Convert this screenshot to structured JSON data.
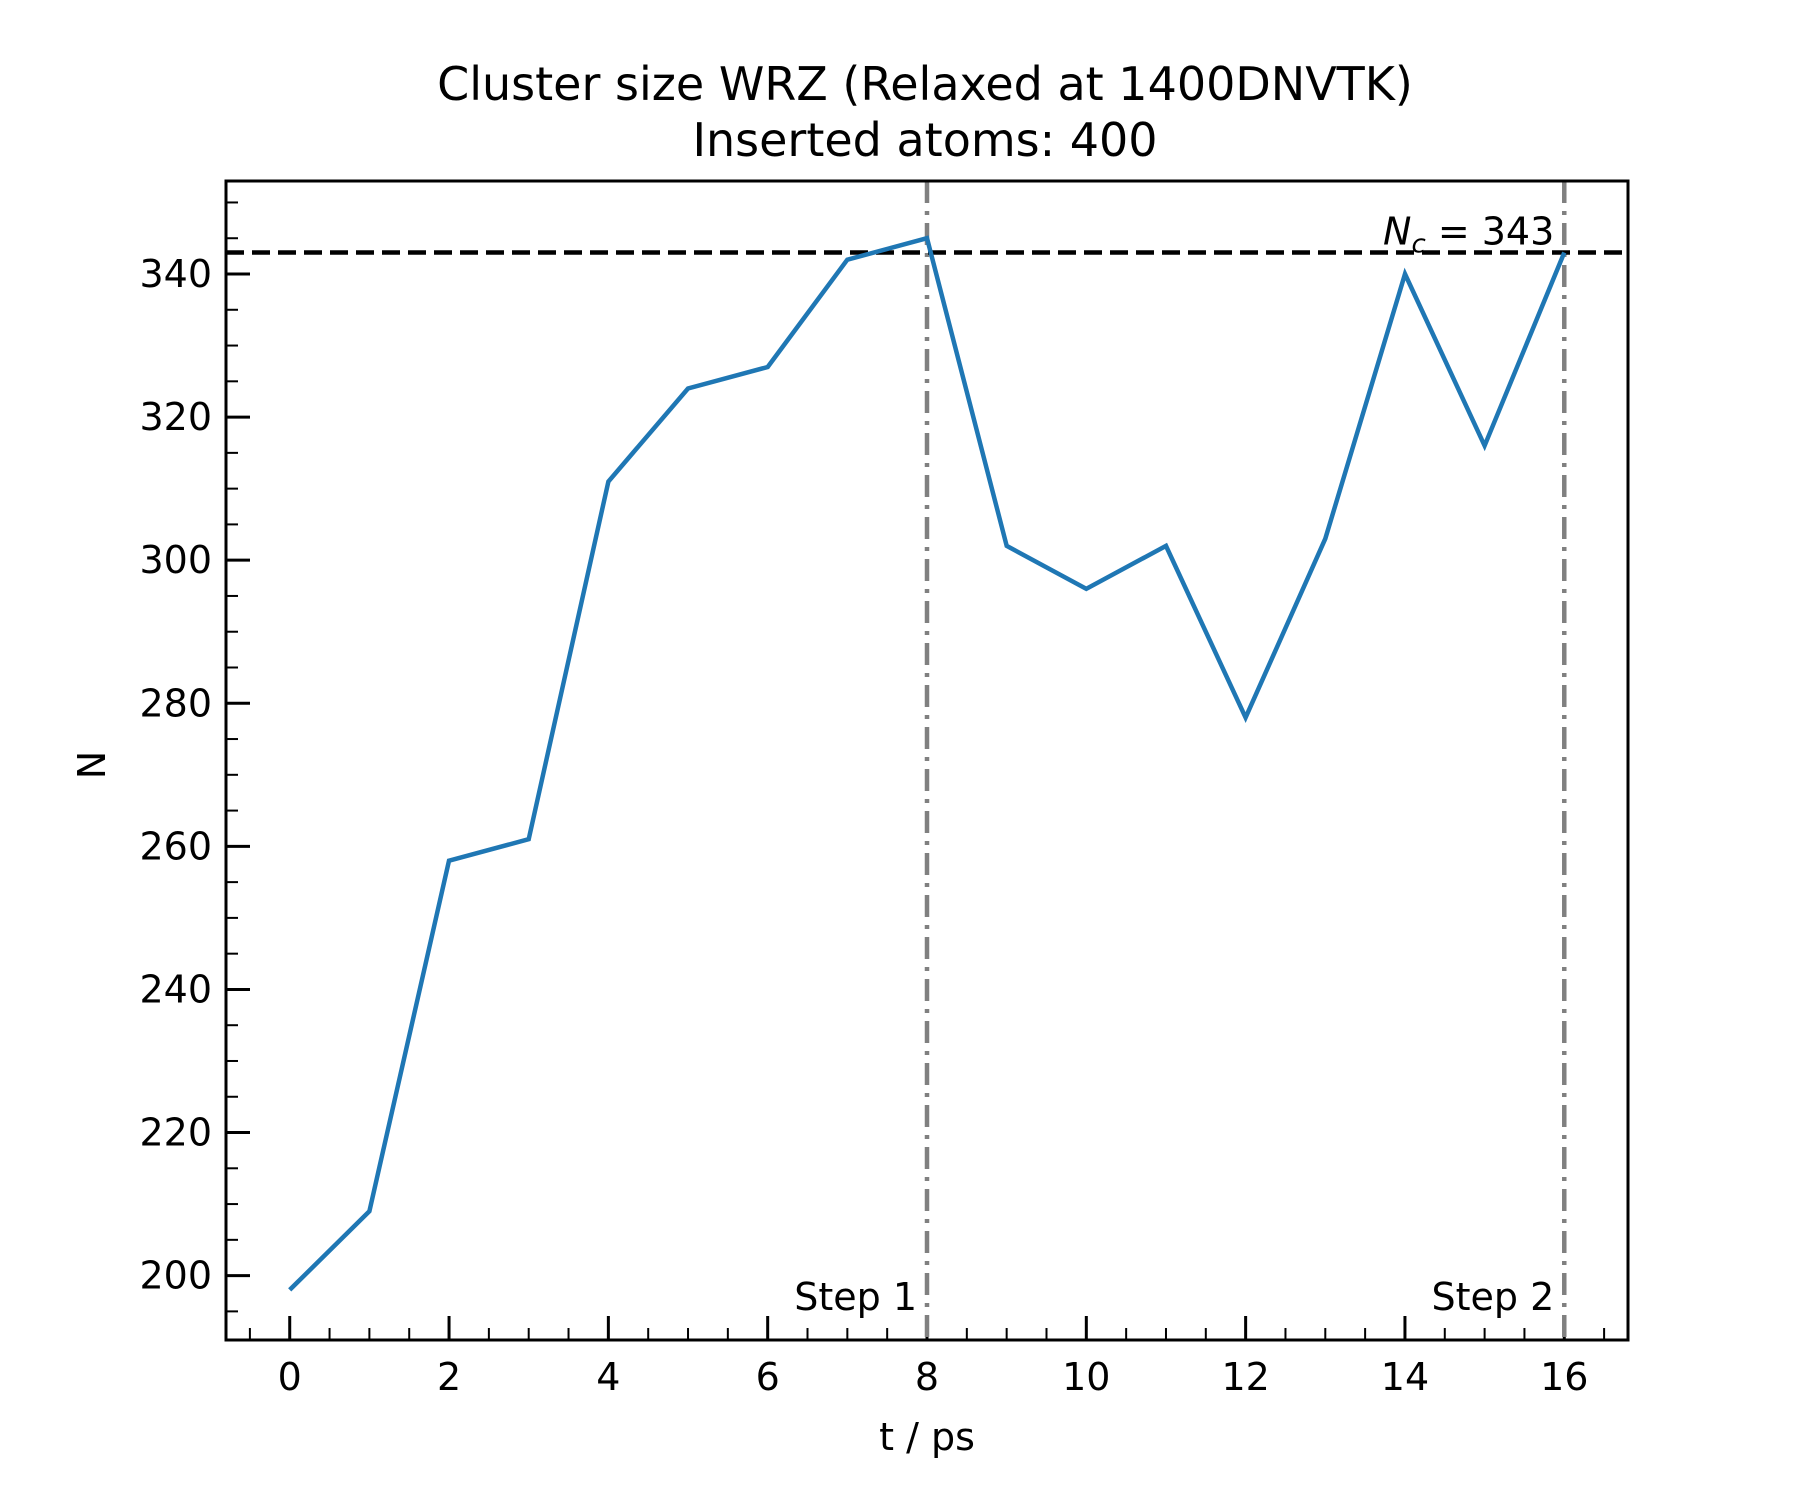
{
  "chart_data": {
    "type": "line",
    "title": "Cluster size WRZ (Relaxed at 1400DNVTK)",
    "subtitle": "Inserted atoms: 400",
    "xlabel": "t / ps",
    "ylabel": "N",
    "xlim": [
      -0.8,
      16.8
    ],
    "ylim": [
      191,
      353
    ],
    "xticks": [
      0,
      2,
      4,
      6,
      8,
      10,
      12,
      14,
      16
    ],
    "yticks": [
      200,
      220,
      240,
      260,
      280,
      300,
      320,
      340
    ],
    "x_minor_step": 0.5,
    "y_minor_step": 5,
    "grid": false,
    "series": [
      {
        "color": "#1f77b4",
        "x": [
          0,
          1,
          2,
          3,
          4,
          5,
          6,
          7,
          8,
          9,
          10,
          11,
          12,
          13,
          14,
          15,
          16
        ],
        "values": [
          198,
          209,
          258,
          261,
          311,
          324,
          327,
          342,
          345,
          302,
          296,
          302,
          278,
          303,
          340,
          316,
          343
        ]
      }
    ],
    "hlines": [
      {
        "y": 343,
        "style": "dashed",
        "color": "#000000",
        "label_main": "N",
        "label_sub": "c",
        "label_rest": " = 343"
      }
    ],
    "vlines": [
      {
        "x": 8,
        "style": "dashdot",
        "color": "#808080",
        "label": "Step 1"
      },
      {
        "x": 16,
        "style": "dashdot",
        "color": "#808080",
        "label": "Step 2"
      }
    ]
  }
}
